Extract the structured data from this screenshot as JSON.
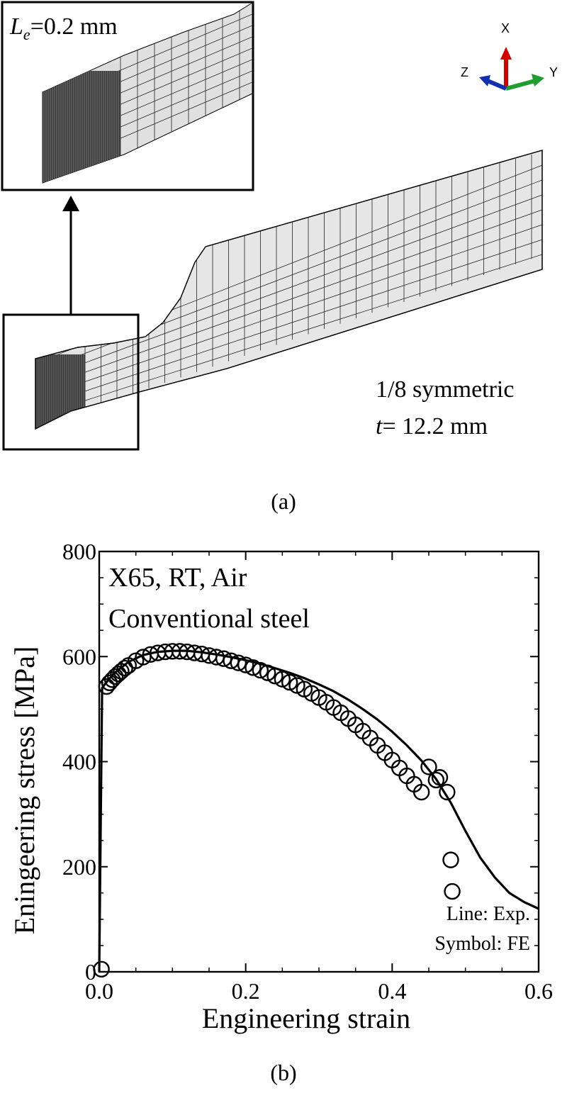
{
  "panel_a": {
    "inset_label_symbol": "L",
    "inset_label_sub": "e",
    "inset_label_value": "=0.2 mm",
    "symmetry_text": "1/8 symmetric",
    "thickness_symbol": "t",
    "thickness_value": "= 12.2 mm",
    "axis_x": "X",
    "axis_y": "Y",
    "axis_z": "Z",
    "axis_colors": {
      "x": "#d40000",
      "y": "#1f9e2f",
      "z": "#1030b0"
    },
    "caption": "(a)"
  },
  "panel_b": {
    "caption": "(b)",
    "annotation_line1": "X65, RT, Air",
    "annotation_line2": "Conventional steel",
    "legend_line": "Line: Exp.",
    "legend_symbol": "Symbol: FE"
  },
  "chart_data": {
    "type": "line",
    "xlabel": "Engineering strain",
    "ylabel": "Eningeering stress [MPa]",
    "xlim": [
      0,
      0.6
    ],
    "ylim": [
      0,
      800
    ],
    "xticks": [
      0.0,
      0.2,
      0.4,
      0.6
    ],
    "xtick_labels": [
      "0.0",
      "0.2",
      "0.4",
      "0.6"
    ],
    "yticks": [
      0,
      200,
      400,
      600,
      800
    ],
    "ytick_labels": [
      "0",
      "200",
      "400",
      "600",
      "800"
    ],
    "series": [
      {
        "name": "Exp.",
        "style": "line",
        "x": [
          0,
          0.002,
          0.004,
          0.008,
          0.02,
          0.04,
          0.06,
          0.08,
          0.1,
          0.12,
          0.14,
          0.16,
          0.18,
          0.2,
          0.22,
          0.24,
          0.26,
          0.28,
          0.3,
          0.32,
          0.34,
          0.36,
          0.38,
          0.4,
          0.42,
          0.44,
          0.46,
          0.48,
          0.5,
          0.52,
          0.54,
          0.56,
          0.58,
          0.6
        ],
        "y": [
          0,
          280,
          540,
          548,
          568,
          590,
          603,
          609,
          611,
          611,
          608,
          604,
          599,
          593,
          586,
          578,
          569,
          559,
          547,
          534,
          518,
          500,
          480,
          457,
          431,
          402,
          367,
          322,
          268,
          218,
          180,
          150,
          133,
          120
        ]
      },
      {
        "name": "FE",
        "style": "open-circle",
        "x": [
          0.003,
          0.01,
          0.014,
          0.018,
          0.022,
          0.026,
          0.03,
          0.035,
          0.04,
          0.05,
          0.06,
          0.07,
          0.08,
          0.09,
          0.1,
          0.11,
          0.12,
          0.13,
          0.14,
          0.15,
          0.16,
          0.17,
          0.18,
          0.19,
          0.2,
          0.21,
          0.22,
          0.23,
          0.24,
          0.25,
          0.26,
          0.27,
          0.28,
          0.29,
          0.3,
          0.31,
          0.32,
          0.33,
          0.34,
          0.35,
          0.36,
          0.37,
          0.38,
          0.39,
          0.4,
          0.41,
          0.42,
          0.43,
          0.44,
          0.45,
          0.46,
          0.465,
          0.475,
          0.48,
          0.482
        ],
        "y": [
          5,
          543,
          550,
          556,
          562,
          567,
          572,
          578,
          583,
          592,
          599,
          604,
          607,
          609,
          610,
          610,
          609,
          607,
          605,
          602,
          599,
          596,
          592,
          588,
          584,
          579,
          574,
          569,
          563,
          557,
          551,
          545,
          538,
          530,
          522,
          513,
          503,
          493,
          482,
          470,
          458,
          445,
          431,
          417,
          403,
          388,
          373,
          357,
          342,
          390,
          365,
          370,
          342,
          213,
          153
        ]
      }
    ]
  }
}
